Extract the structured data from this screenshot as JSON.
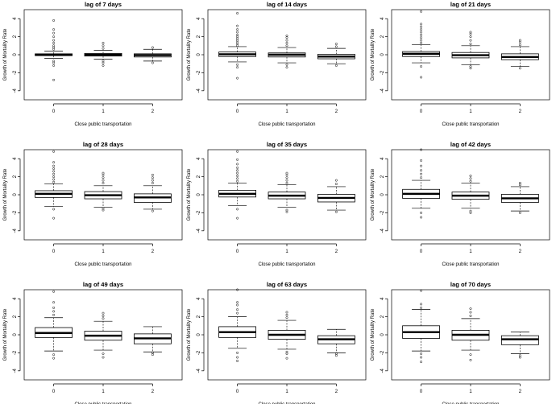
{
  "chart_data": [
    {
      "type": "box",
      "title": "lag of 7 days",
      "xlabel": "Close public transportation",
      "ylabel": "Growth of Mortality Rate",
      "categories": [
        "0",
        "1",
        "2"
      ],
      "yticks": [
        -4,
        -2,
        0,
        2,
        4
      ],
      "ylim": [
        -5,
        5
      ],
      "boxes": [
        {
          "q1": -0.1,
          "median": 0.0,
          "q3": 0.1,
          "whisker_low": -0.4,
          "whisker_high": 0.4,
          "outliers": [
            -2.8,
            -1.2,
            -0.9,
            -0.7,
            0.6,
            0.8,
            1.0,
            1.3,
            1.6,
            2.0,
            2.4,
            2.8,
            3.8
          ]
        },
        {
          "q1": -0.15,
          "median": 0.0,
          "q3": 0.15,
          "whisker_low": -0.5,
          "whisker_high": 0.5,
          "outliers": [
            -1.2,
            -0.9,
            -0.7,
            0.7,
            1.0,
            1.3
          ]
        },
        {
          "q1": -0.25,
          "median": -0.05,
          "q3": 0.1,
          "whisker_low": -0.7,
          "whisker_high": 0.6,
          "outliers": [
            -0.9,
            0.8
          ]
        }
      ]
    },
    {
      "type": "box",
      "title": "lag of 14 days",
      "xlabel": "Close public transportation",
      "ylabel": "Growth of Mortality Rate",
      "categories": [
        "0",
        "1",
        "2"
      ],
      "yticks": [
        -4,
        -2,
        0,
        2,
        4
      ],
      "ylim": [
        -5,
        5
      ],
      "boxes": [
        {
          "q1": -0.2,
          "median": 0.05,
          "q3": 0.3,
          "whisker_low": -0.8,
          "whisker_high": 0.9,
          "outliers": [
            -2.6,
            -1.4,
            -1.1,
            1.0,
            1.2,
            1.4,
            1.6,
            1.8,
            2.0,
            2.2,
            2.5,
            2.8,
            3.2,
            4.6
          ]
        },
        {
          "q1": -0.25,
          "median": 0.0,
          "q3": 0.2,
          "whisker_low": -0.9,
          "whisker_high": 0.8,
          "outliers": [
            -1.4,
            -1.1,
            1.0,
            1.3,
            1.6,
            1.9,
            2.1
          ]
        },
        {
          "q1": -0.45,
          "median": -0.2,
          "q3": 0.05,
          "whisker_low": -1.0,
          "whisker_high": 0.7,
          "outliers": [
            -1.2,
            0.9,
            1.2
          ]
        }
      ]
    },
    {
      "type": "box",
      "title": "lag of 21 days",
      "xlabel": "Close public transportation",
      "ylabel": "Growth of Mortality Rate",
      "categories": [
        "0",
        "1",
        "2"
      ],
      "yticks": [
        -4,
        -2,
        0,
        2,
        4
      ],
      "ylim": [
        -5,
        5
      ],
      "boxes": [
        {
          "q1": -0.2,
          "median": 0.1,
          "q3": 0.35,
          "whisker_low": -0.9,
          "whisker_high": 1.1,
          "outliers": [
            -2.5,
            -1.3,
            1.3,
            1.6,
            1.9,
            2.2,
            2.5,
            2.8,
            3.1,
            3.4,
            4.8
          ]
        },
        {
          "q1": -0.35,
          "median": -0.05,
          "q3": 0.25,
          "whisker_low": -1.1,
          "whisker_high": 1.0,
          "outliers": [
            -1.5,
            -1.3,
            1.2,
            1.6,
            2.0,
            2.3,
            2.5
          ]
        },
        {
          "q1": -0.55,
          "median": -0.25,
          "q3": 0.1,
          "whisker_low": -1.3,
          "whisker_high": 0.9,
          "outliers": [
            -1.5,
            1.1,
            1.4,
            1.6
          ]
        }
      ]
    },
    {
      "type": "box",
      "title": "lag of 28 days",
      "xlabel": "Close public transportation",
      "ylabel": "Growth of Mortality Rate",
      "categories": [
        "0",
        "1",
        "2"
      ],
      "yticks": [
        -4,
        -2,
        0,
        2,
        4
      ],
      "ylim": [
        -5,
        5
      ],
      "boxes": [
        {
          "q1": -0.3,
          "median": 0.1,
          "q3": 0.45,
          "whisker_low": -1.3,
          "whisker_high": 1.2,
          "outliers": [
            -2.6,
            -1.6,
            1.4,
            1.7,
            2.0,
            2.3,
            2.6,
            2.9,
            3.2,
            3.6,
            4.8
          ]
        },
        {
          "q1": -0.45,
          "median": -0.05,
          "q3": 0.35,
          "whisker_low": -1.4,
          "whisker_high": 1.0,
          "outliers": [
            -1.7,
            -1.5,
            1.3,
            1.6,
            1.9,
            2.2,
            2.4
          ]
        },
        {
          "q1": -0.85,
          "median": -0.3,
          "q3": 0.1,
          "whisker_low": -1.6,
          "whisker_high": 1.0,
          "outliers": [
            -1.8,
            1.3,
            1.6,
            1.9,
            2.2
          ]
        }
      ]
    },
    {
      "type": "box",
      "title": "lag of 35 days",
      "xlabel": "Close public transportation",
      "ylabel": "Growth of Mortality Rate",
      "categories": [
        "0",
        "1",
        "2"
      ],
      "yticks": [
        -4,
        -2,
        0,
        2,
        4
      ],
      "ylim": [
        -5,
        5
      ],
      "boxes": [
        {
          "q1": -0.25,
          "median": 0.1,
          "q3": 0.5,
          "whisker_low": -1.2,
          "whisker_high": 1.3,
          "outliers": [
            -2.6,
            -1.6,
            1.5,
            1.8,
            2.1,
            2.4,
            2.7,
            3.0,
            3.4,
            3.9,
            4.8
          ]
        },
        {
          "q1": -0.45,
          "median": -0.1,
          "q3": 0.3,
          "whisker_low": -1.4,
          "whisker_high": 1.1,
          "outliers": [
            -1.9,
            -1.7,
            1.3,
            1.6,
            1.9,
            2.2,
            2.4
          ]
        },
        {
          "q1": -0.8,
          "median": -0.35,
          "q3": 0.05,
          "whisker_low": -1.7,
          "whisker_high": 0.9,
          "outliers": [
            -1.9,
            1.2,
            1.6
          ]
        }
      ]
    },
    {
      "type": "box",
      "title": "lag of 42 days",
      "xlabel": "Close public transportation",
      "ylabel": "Growth of Mortality Rate",
      "categories": [
        "0",
        "1",
        "2"
      ],
      "yticks": [
        -4,
        -2,
        0,
        2,
        4
      ],
      "ylim": [
        -5,
        5
      ],
      "boxes": [
        {
          "q1": -0.4,
          "median": 0.1,
          "q3": 0.6,
          "whisker_low": -1.5,
          "whisker_high": 1.6,
          "outliers": [
            -2.5,
            -2.0,
            1.9,
            2.3,
            2.7,
            3.2,
            3.8,
            5.0
          ]
        },
        {
          "q1": -0.5,
          "median": -0.1,
          "q3": 0.3,
          "whisker_low": -1.5,
          "whisker_high": 1.3,
          "outliers": [
            -2.0,
            -1.8,
            1.5,
            1.8,
            2.1
          ]
        },
        {
          "q1": -0.85,
          "median": -0.4,
          "q3": 0.05,
          "whisker_low": -1.8,
          "whisker_high": 0.9,
          "outliers": [
            -2.0,
            1.1,
            1.3
          ]
        }
      ]
    },
    {
      "type": "box",
      "title": "lag of 49 days",
      "xlabel": "Close public transportation",
      "ylabel": "Growth of Mortality Rate",
      "categories": [
        "0",
        "1",
        "2"
      ],
      "yticks": [
        -4,
        -2,
        0,
        2,
        4
      ],
      "ylim": [
        -5,
        5
      ],
      "boxes": [
        {
          "q1": -0.3,
          "median": 0.2,
          "q3": 0.8,
          "whisker_low": -1.8,
          "whisker_high": 1.9,
          "outliers": [
            -2.6,
            -2.2,
            2.2,
            2.6,
            3.0,
            3.6,
            4.8
          ]
        },
        {
          "q1": -0.6,
          "median": -0.1,
          "q3": 0.4,
          "whisker_low": -1.7,
          "whisker_high": 1.5,
          "outliers": [
            -2.5,
            -2.1,
            1.8,
            2.1,
            2.4
          ]
        },
        {
          "q1": -1.0,
          "median": -0.4,
          "q3": 0.1,
          "whisker_low": -1.9,
          "whisker_high": 0.9,
          "outliers": [
            -2.2,
            -2.0
          ]
        }
      ]
    },
    {
      "type": "box",
      "title": "lag of 63 days",
      "xlabel": "Close public transportation",
      "ylabel": "Growth of Mortality Rate",
      "categories": [
        "0",
        "1",
        "2"
      ],
      "yticks": [
        -4,
        -2,
        0,
        2,
        4
      ],
      "ylim": [
        -5,
        5
      ],
      "boxes": [
        {
          "q1": -0.3,
          "median": 0.3,
          "q3": 0.9,
          "whisker_low": -1.5,
          "whisker_high": 2.0,
          "outliers": [
            -2.9,
            -2.5,
            -2.0,
            2.4,
            2.8,
            3.3,
            3.6,
            5.0
          ]
        },
        {
          "q1": -0.5,
          "median": 0.0,
          "q3": 0.5,
          "whisker_low": -1.6,
          "whisker_high": 1.6,
          "outliers": [
            -2.6,
            -2.1,
            -1.9,
            1.9,
            2.2,
            2.5
          ]
        },
        {
          "q1": -1.0,
          "median": -0.5,
          "q3": -0.1,
          "whisker_low": -2.0,
          "whisker_high": 0.6,
          "outliers": [
            -2.3,
            -2.1
          ]
        }
      ]
    },
    {
      "type": "box",
      "title": "lag of 70 days",
      "xlabel": "Close public transportation",
      "ylabel": "Growth of Mortality Rate",
      "categories": [
        "0",
        "1",
        "2"
      ],
      "yticks": [
        -4,
        -2,
        0,
        2,
        4
      ],
      "ylim": [
        -5,
        5
      ],
      "boxes": [
        {
          "q1": -0.4,
          "median": 0.3,
          "q3": 1.0,
          "whisker_low": -1.8,
          "whisker_high": 2.8,
          "outliers": [
            -3.0,
            -2.5,
            -2.1,
            3.0,
            3.4,
            4.9
          ]
        },
        {
          "q1": -0.6,
          "median": 0.0,
          "q3": 0.5,
          "whisker_low": -1.7,
          "whisker_high": 1.8,
          "outliers": [
            -2.8,
            -2.2,
            2.1,
            2.5,
            2.9
          ]
        },
        {
          "q1": -1.1,
          "median": -0.5,
          "q3": -0.1,
          "whisker_low": -2.1,
          "whisker_high": 0.3,
          "outliers": [
            -2.5,
            -2.3
          ]
        }
      ]
    }
  ]
}
